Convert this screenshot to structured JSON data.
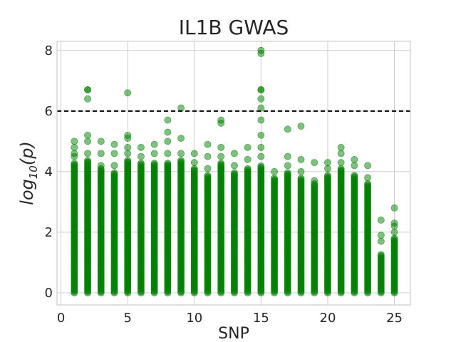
{
  "chart_data": {
    "type": "scatter",
    "title": "IL1B GWAS",
    "xlabel": "SNP",
    "ylabel": {
      "base": "log",
      "subscript": "10",
      "rest": "(p)"
    },
    "xlim": [
      -0.3,
      26.2
    ],
    "ylim": [
      -0.4,
      8.3
    ],
    "xticks": [
      0,
      5,
      10,
      15,
      20,
      25
    ],
    "yticks": [
      0,
      2,
      4,
      6,
      8
    ],
    "grid": true,
    "colors": {
      "points": "#008000",
      "threshold": "#000000",
      "grid": "#cccccc",
      "spine": "#cccccc"
    },
    "threshold": {
      "y": 6,
      "style": "dashed"
    },
    "columns": [
      {
        "x": 1,
        "dense_max": 4.3,
        "outliers": [
          4.5,
          4.6,
          4.8,
          5.0
        ]
      },
      {
        "x": 2,
        "dense_max": 4.4,
        "outliers": [
          4.6,
          5.0,
          5.2,
          6.4,
          6.7,
          6.7
        ]
      },
      {
        "x": 3,
        "dense_max": 4.1,
        "outliers": [
          4.2,
          4.6,
          5.0
        ]
      },
      {
        "x": 4,
        "dense_max": 4.0,
        "outliers": [
          4.2,
          4.6,
          4.9
        ]
      },
      {
        "x": 5,
        "dense_max": 4.4,
        "outliers": [
          4.6,
          4.8,
          5.1,
          5.2,
          6.6
        ]
      },
      {
        "x": 6,
        "dense_max": 4.3,
        "outliers": [
          4.5,
          4.8
        ]
      },
      {
        "x": 7,
        "dense_max": 4.3,
        "outliers": [
          4.6,
          4.9
        ]
      },
      {
        "x": 8,
        "dense_max": 4.3,
        "outliers": [
          4.6,
          5.0,
          5.3,
          5.7
        ]
      },
      {
        "x": 9,
        "dense_max": 4.4,
        "outliers": [
          4.6,
          5.1,
          6.1
        ]
      },
      {
        "x": 10,
        "dense_max": 4.1,
        "outliers": [
          4.3,
          4.6
        ]
      },
      {
        "x": 11,
        "dense_max": 3.9,
        "outliers": [
          4.1,
          4.5,
          4.9
        ]
      },
      {
        "x": 12,
        "dense_max": 4.3,
        "outliers": [
          4.5,
          4.8,
          5.6,
          5.7
        ]
      },
      {
        "x": 13,
        "dense_max": 4.0,
        "outliers": [
          4.2,
          4.6
        ]
      },
      {
        "x": 14,
        "dense_max": 4.1,
        "outliers": [
          4.4,
          4.8
        ]
      },
      {
        "x": 15,
        "dense_max": 4.2,
        "outliers": [
          4.5,
          4.8,
          5.2,
          5.7,
          6.1,
          6.4,
          6.7,
          6.7,
          7.9,
          8.0
        ]
      },
      {
        "x": 16,
        "dense_max": 3.8,
        "outliers": [
          4.0
        ]
      },
      {
        "x": 17,
        "dense_max": 4.0,
        "outliers": [
          4.2,
          4.5,
          5.4
        ]
      },
      {
        "x": 18,
        "dense_max": 3.8,
        "outliers": [
          4.0,
          4.4,
          5.5
        ]
      },
      {
        "x": 19,
        "dense_max": 3.6,
        "outliers": [
          3.7,
          4.3
        ]
      },
      {
        "x": 20,
        "dense_max": 3.9,
        "outliers": [
          4.1,
          4.3
        ]
      },
      {
        "x": 21,
        "dense_max": 4.1,
        "outliers": [
          4.3,
          4.6,
          4.8
        ]
      },
      {
        "x": 22,
        "dense_max": 3.9,
        "outliers": [
          4.2,
          4.4
        ]
      },
      {
        "x": 23,
        "dense_max": 3.6,
        "outliers": [
          3.8,
          4.2
        ]
      },
      {
        "x": 24,
        "dense_max": 1.3,
        "outliers": [
          1.7,
          1.9,
          2.4
        ]
      },
      {
        "x": 25,
        "dense_max": 1.8,
        "outliers": [
          2.0,
          2.2,
          2.3,
          2.8
        ]
      }
    ]
  }
}
